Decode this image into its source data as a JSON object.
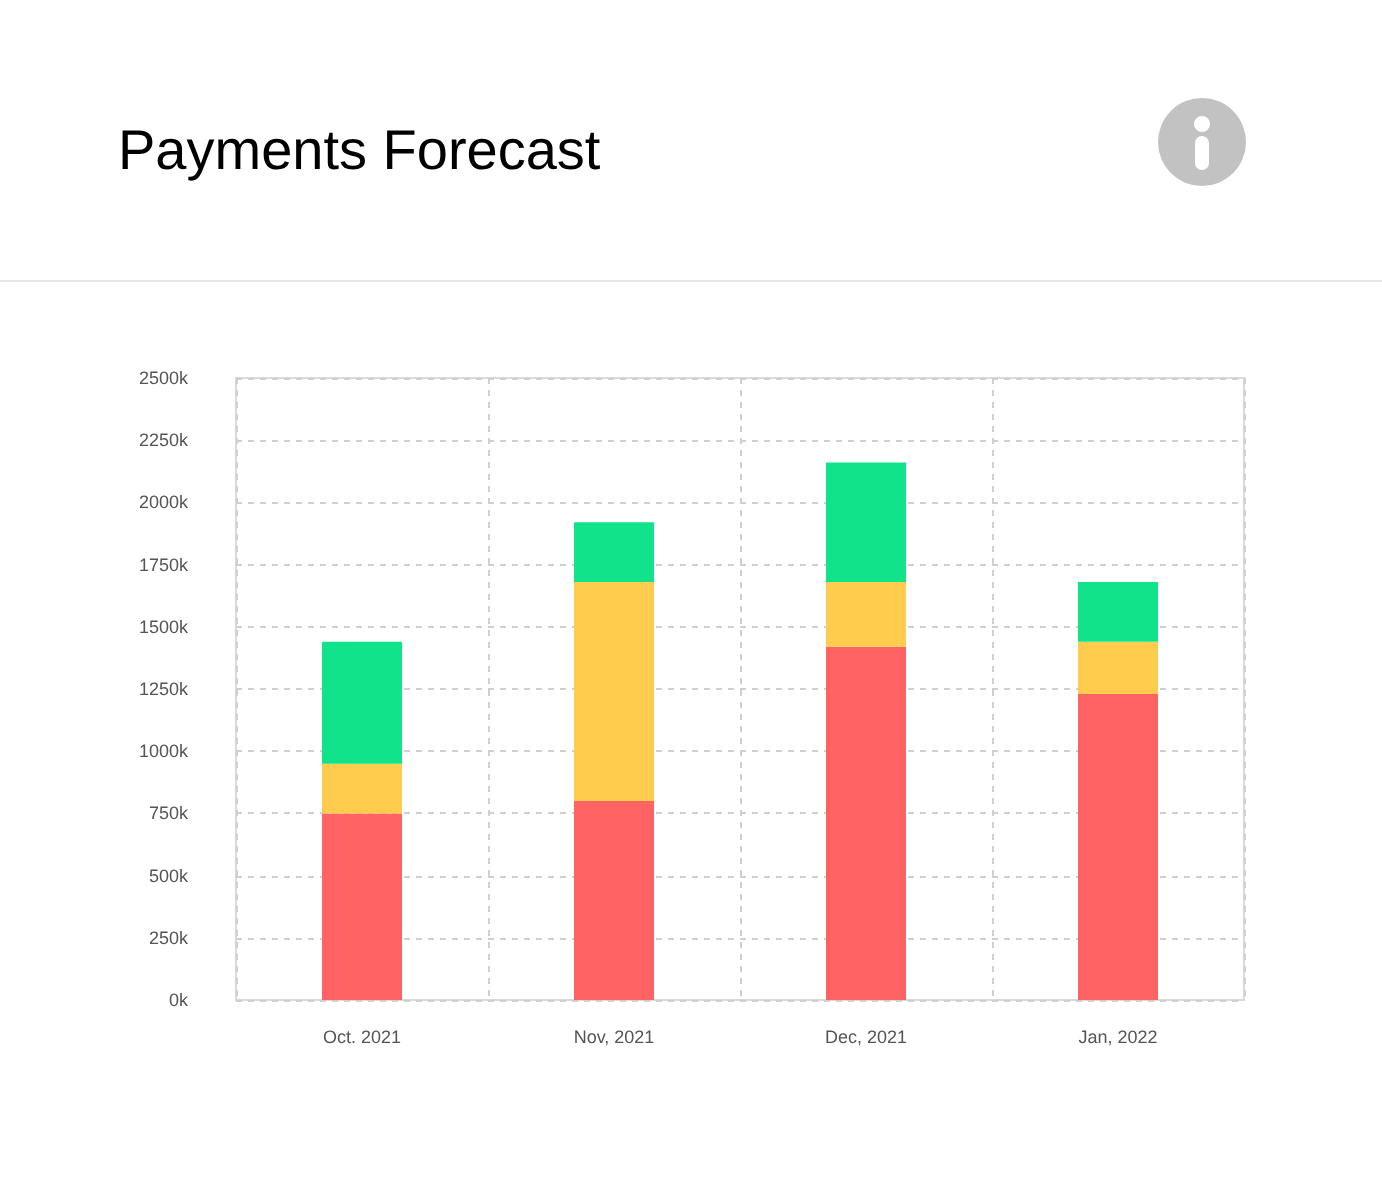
{
  "chart_data": {
    "type": "bar",
    "title": "Payments Forecast",
    "categories": [
      "Oct. 2021",
      "Nov, 2021",
      "Dec, 2021",
      "Jan, 2022"
    ],
    "series": [
      {
        "color": "#ff6363",
        "values": [
          750,
          800,
          1420,
          1230
        ]
      },
      {
        "color": "#ffcc4d",
        "values": [
          200,
          880,
          260,
          210
        ]
      },
      {
        "color": "#10e38a",
        "values": [
          490,
          240,
          480,
          240
        ]
      }
    ],
    "stacked": true,
    "ylim": [
      0,
      2500
    ],
    "yticks": [
      {
        "value": 0,
        "label": "0k"
      },
      {
        "value": 250,
        "label": "250k"
      },
      {
        "value": 500,
        "label": "500k"
      },
      {
        "value": 750,
        "label": "750k"
      },
      {
        "value": 1000,
        "label": "1000k"
      },
      {
        "value": 1250,
        "label": "1250k"
      },
      {
        "value": 1500,
        "label": "1500k"
      },
      {
        "value": 1750,
        "label": "1750k"
      },
      {
        "value": 2000,
        "label": "2000k"
      },
      {
        "value": 2250,
        "label": "2250k"
      },
      {
        "value": 2500,
        "label": "2500k"
      }
    ],
    "grid": true
  }
}
